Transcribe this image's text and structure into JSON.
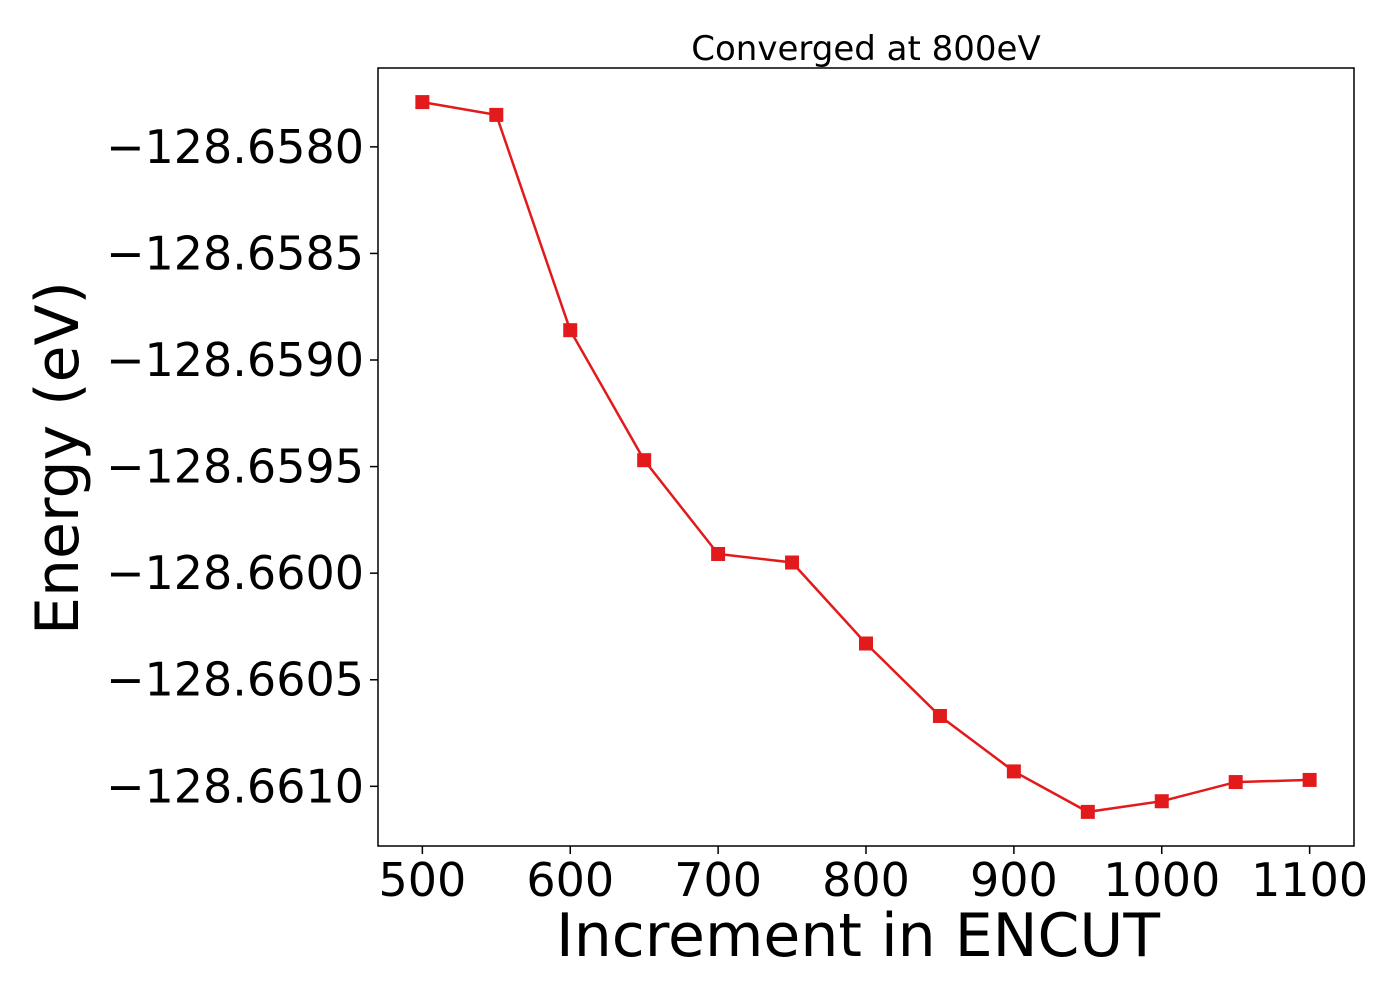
{
  "chart_data": {
    "type": "line",
    "title": "Converged at 800eV",
    "xlabel": "Increment in ENCUT",
    "ylabel": "Energy (eV)",
    "xlim": [
      470,
      1130
    ],
    "ylim": [
      -128.66128,
      -128.65763
    ],
    "xticks": [
      500,
      600,
      700,
      800,
      900,
      1000,
      1100
    ],
    "yticks": [
      -128.658,
      -128.6585,
      -128.659,
      -128.6595,
      -128.66,
      -128.6605,
      -128.661
    ],
    "ytick_labels": [
      "−128.6580",
      "−128.6585",
      "−128.6590",
      "−128.6595",
      "−128.6600",
      "−128.6605",
      "−128.6610"
    ],
    "grid": false,
    "series": [
      {
        "color": "#e31a1c",
        "marker": "square",
        "x": [
          500,
          550,
          600,
          650,
          700,
          750,
          800,
          850,
          900,
          950,
          1000,
          1050,
          1100
        ],
        "y": [
          -128.65779,
          -128.65785,
          -128.65886,
          -128.65947,
          -128.65991,
          -128.65995,
          -128.66033,
          -128.66067,
          -128.66093,
          -128.66112,
          -128.66107,
          -128.66098,
          -128.66097
        ]
      }
    ]
  }
}
